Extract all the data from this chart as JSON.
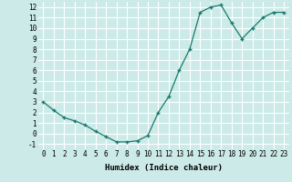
{
  "x": [
    0,
    1,
    2,
    3,
    4,
    5,
    6,
    7,
    8,
    9,
    10,
    11,
    12,
    13,
    14,
    15,
    16,
    17,
    18,
    19,
    20,
    21,
    22,
    23
  ],
  "y": [
    3.0,
    2.2,
    1.5,
    1.2,
    0.8,
    0.2,
    -0.3,
    -0.8,
    -0.8,
    -0.7,
    -0.2,
    2.0,
    3.5,
    6.0,
    8.0,
    11.5,
    12.0,
    12.2,
    10.5,
    9.0,
    10.0,
    11.0,
    11.5,
    11.5
  ],
  "line_color": "#1a7a6e",
  "marker": "+",
  "marker_size": 3,
  "marker_lw": 1.0,
  "line_width": 0.9,
  "background_color": "#cceae7",
  "grid_color": "#ffffff",
  "xlabel": "Humidex (Indice chaleur)",
  "xlim": [
    -0.5,
    23.5
  ],
  "ylim": [
    -1.5,
    12.5
  ],
  "xticks": [
    0,
    1,
    2,
    3,
    4,
    5,
    6,
    7,
    8,
    9,
    10,
    11,
    12,
    13,
    14,
    15,
    16,
    17,
    18,
    19,
    20,
    21,
    22,
    23
  ],
  "yticks": [
    -1,
    0,
    1,
    2,
    3,
    4,
    5,
    6,
    7,
    8,
    9,
    10,
    11,
    12
  ],
  "xlabel_fontsize": 6.5,
  "tick_fontsize": 5.5
}
